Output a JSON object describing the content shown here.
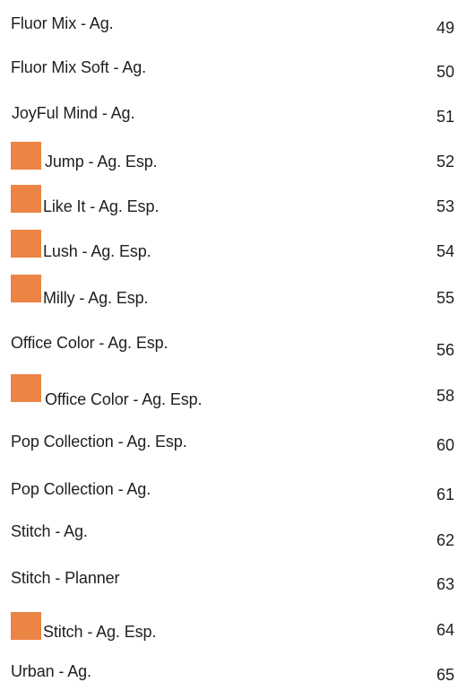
{
  "accent_color": "#ec8446",
  "entries": [
    {
      "title": "Fluor Mix - Ag.",
      "page": "49",
      "marked": false
    },
    {
      "title": "Fluor Mix Soft - Ag.",
      "page": "50",
      "marked": false
    },
    {
      "title": "JoyFul Mind - Ag.",
      "page": "51",
      "marked": false
    },
    {
      "title": "Jump - Ag. Esp.",
      "page": "52",
      "marked": true
    },
    {
      "title": "Like It - Ag. Esp.",
      "page": "53",
      "marked": true
    },
    {
      "title": "Lush - Ag. Esp.",
      "page": "54",
      "marked": true
    },
    {
      "title": "Milly - Ag. Esp.",
      "page": "55",
      "marked": true
    },
    {
      "title": "Office Color - Ag. Esp.",
      "page": "56",
      "marked": false
    },
    {
      "title": "Office Color - Ag. Esp.",
      "page": "58",
      "marked": true
    },
    {
      "title": "Pop Collection - Ag. Esp.",
      "page": "60",
      "marked": false
    },
    {
      "title": "Pop Collection - Ag.",
      "page": "61",
      "marked": false
    },
    {
      "title": "Stitch - Ag.",
      "page": "62",
      "marked": false
    },
    {
      "title": "Stitch - Planner",
      "page": "63",
      "marked": false
    },
    {
      "title": "Stitch - Ag. Esp.",
      "page": "64",
      "marked": true
    },
    {
      "title": "Urban - Ag.",
      "page": "65",
      "marked": false
    }
  ]
}
